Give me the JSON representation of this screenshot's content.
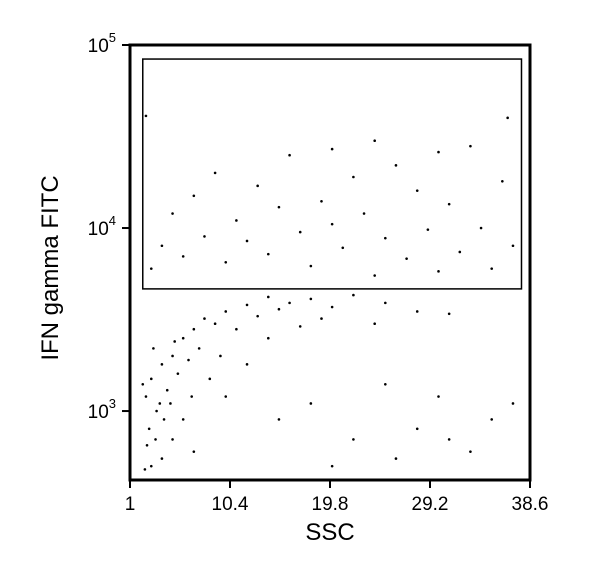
{
  "chart_data": {
    "type": "scatter",
    "x_label": "SSC",
    "y_label": "IFN gamma FITC",
    "color": "#000000",
    "log_y": true,
    "xlim": [
      1,
      38.6
    ],
    "xticks": [
      1,
      10.4,
      19.8,
      29.2,
      38.6
    ],
    "ylim": [
      420,
      100000
    ],
    "yticks": [
      {
        "value": 1000,
        "label": "10",
        "exponent": "3"
      },
      {
        "value": 10000,
        "label": "10",
        "exponent": "4"
      },
      {
        "value": 100000,
        "label": "10",
        "exponent": "5"
      }
    ],
    "gate": {
      "xlim": [
        2.2,
        37.8
      ],
      "ylim": [
        4650,
        83800
      ]
    },
    "x": [
      2.5,
      3,
      3.5,
      4,
      4.5,
      5,
      2.8,
      3.2,
      4.2,
      5.5,
      6,
      6.5,
      7,
      3.8,
      2.2,
      2.6,
      3.4,
      4.8,
      5.2,
      7.5,
      8,
      9,
      10,
      11,
      12,
      13,
      14,
      15,
      16,
      18,
      20,
      22,
      25,
      28,
      9.5,
      8.5,
      6.8,
      6,
      5,
      4,
      3,
      2.4,
      7,
      10,
      12,
      14,
      17,
      19,
      24,
      31,
      3,
      4,
      5,
      6,
      7,
      8,
      9,
      10,
      11,
      12,
      13,
      14,
      15,
      16,
      17,
      18,
      19,
      20,
      21,
      22,
      23,
      24,
      25,
      26,
      27,
      28,
      29,
      30,
      31,
      32,
      33,
      34,
      35,
      36,
      37,
      2.5,
      20,
      30,
      36.5,
      24,
      15,
      18,
      22,
      25,
      28,
      30,
      33,
      35,
      37,
      20,
      26,
      31
    ],
    "values": [
      1200,
      1500,
      1000,
      1800,
      1300,
      2000,
      800,
      2200,
      900,
      1600,
      2500,
      1900,
      2800,
      1100,
      1400,
      650,
      700,
      1100,
      2400,
      2200,
      3200,
      3000,
      3500,
      2800,
      3800,
      3300,
      4200,
      3600,
      3900,
      4100,
      3700,
      4300,
      3900,
      3500,
      2000,
      1500,
      1200,
      900,
      700,
      550,
      500,
      480,
      600,
      1200,
      1800,
      2500,
      2900,
      3200,
      3000,
      3400,
      6000,
      8000,
      12000,
      7000,
      15000,
      9000,
      20000,
      6500,
      11000,
      8500,
      17000,
      7200,
      13000,
      25000,
      9500,
      6200,
      14000,
      10500,
      7800,
      19000,
      12000,
      5500,
      8800,
      22000,
      6800,
      16000,
      9800,
      5800,
      13500,
      7400,
      28000,
      10000,
      6000,
      18000,
      8000,
      41000,
      27000,
      26000,
      40000,
      30000,
      900,
      1100,
      700,
      1400,
      800,
      1200,
      600,
      900,
      1100,
      500,
      550,
      700
    ]
  }
}
